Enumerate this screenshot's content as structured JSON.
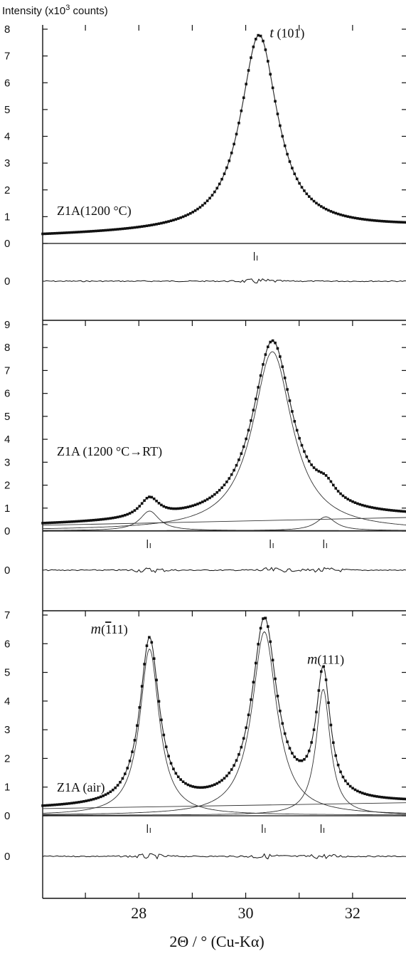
{
  "chart_data": {
    "type": "line",
    "ylabel_prefix": "Intensity (x10",
    "ylabel_exp": "3",
    "ylabel_suffix": " counts)",
    "xlabel": "2Θ / ° (Cu-Kα)",
    "xlim": [
      26.2,
      33.0
    ],
    "xticks": [
      27,
      28,
      29,
      30,
      31,
      32
    ],
    "xtick_labels": [
      "28",
      "30",
      "32"
    ],
    "xtick_label_values": [
      28,
      30,
      32
    ],
    "grid": false,
    "panels": [
      {
        "id": "top",
        "sample_label": "Z1A(1200 °C)",
        "ylim": [
          0,
          8
        ],
        "yticks": [
          0,
          1,
          2,
          3,
          4,
          5,
          6,
          7,
          8
        ],
        "annotations": [
          {
            "text": "t (101)",
            "italic_part": "t",
            "rest": " (101)",
            "x": 30.45,
            "y": 7.7
          }
        ],
        "peaks": [
          {
            "center": 30.25,
            "height": 7.3,
            "width": 0.42
          }
        ],
        "baseline": {
          "start": 0.28,
          "slope": 0.05
        },
        "reflection_markers": [
          30.2
        ],
        "residual_label": "0"
      },
      {
        "id": "middle",
        "sample_label": "Z1A (1200 °C→RT)",
        "ylim": [
          0,
          9
        ],
        "yticks": [
          0,
          1,
          2,
          3,
          4,
          5,
          6,
          7,
          8,
          9
        ],
        "annotations": [],
        "peaks": [
          {
            "center": 30.5,
            "height": 7.8,
            "width": 0.45
          },
          {
            "center": 28.2,
            "height": 0.85,
            "width": 0.22
          },
          {
            "center": 31.5,
            "height": 0.6,
            "width": 0.22
          }
        ],
        "baseline": {
          "start": 0.25,
          "slope": 0.05
        },
        "reflection_markers": [
          28.2,
          30.5,
          31.5
        ],
        "residual_label": "0"
      },
      {
        "id": "bottom",
        "sample_label": "Z1A (air)",
        "ylim": [
          0,
          7
        ],
        "yticks": [
          0,
          1,
          2,
          3,
          4,
          5,
          6,
          7
        ],
        "annotations": [
          {
            "text": "m(-111)",
            "italic_part": "m",
            "rest": "(11)",
            "bar_one": "1",
            "x": 27.1,
            "y": 6.35
          },
          {
            "text": "m(111)",
            "italic_part": "m",
            "rest": "(111)",
            "x": 31.15,
            "y": 5.3
          }
        ],
        "peaks": [
          {
            "center": 28.2,
            "height": 5.8,
            "width": 0.22
          },
          {
            "center": 30.35,
            "height": 6.4,
            "width": 0.28
          },
          {
            "center": 31.45,
            "height": 4.4,
            "width": 0.16
          }
        ],
        "baseline": {
          "start": 0.25,
          "slope": 0.03
        },
        "reflection_markers": [
          28.2,
          30.35,
          31.45
        ],
        "residual_label": "0"
      }
    ]
  }
}
